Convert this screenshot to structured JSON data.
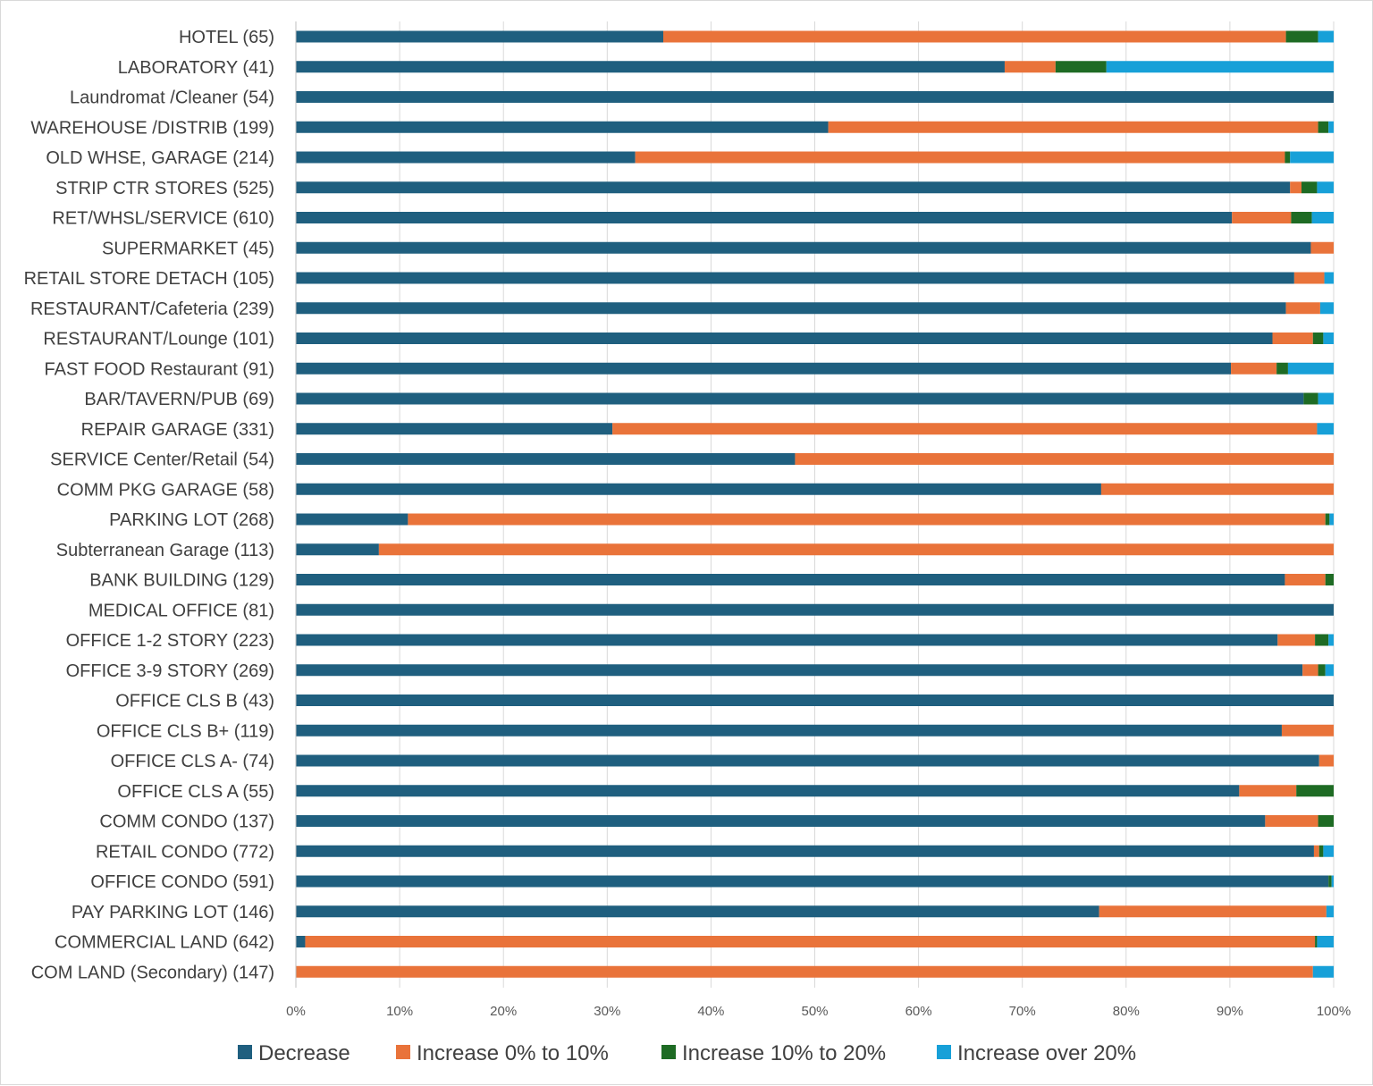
{
  "chart_data": {
    "type": "bar",
    "orientation": "horizontal",
    "stacked": "100%",
    "title": "",
    "xlabel": "",
    "ylabel": "",
    "xlim": [
      0,
      100
    ],
    "x_ticks": [
      "0%",
      "10%",
      "20%",
      "30%",
      "40%",
      "50%",
      "60%",
      "70%",
      "80%",
      "90%",
      "100%"
    ],
    "grid": true,
    "legend_position": "bottom",
    "categories": [
      "HOTEL (65)",
      "LABORATORY (41)",
      "Laundromat /Cleaner (54)",
      "WAREHOUSE /DISTRIB (199)",
      "OLD WHSE, GARAGE (214)",
      "STRIP CTR STORES (525)",
      "RET/WHSL/SERVICE (610)",
      "SUPERMARKET (45)",
      "RETAIL STORE DETACH (105)",
      "RESTAURANT/Cafeteria (239)",
      "RESTAURANT/Lounge (101)",
      "FAST FOOD Restaurant (91)",
      "BAR/TAVERN/PUB (69)",
      "REPAIR GARAGE (331)",
      "SERVICE Center/Retail (54)",
      "COMM PKG GARAGE (58)",
      "PARKING LOT (268)",
      "Subterranean Garage (113)",
      "BANK BUILDING (129)",
      "MEDICAL OFFICE (81)",
      "OFFICE 1-2 STORY (223)",
      "OFFICE 3-9 STORY (269)",
      "OFFICE CLS B (43)",
      "OFFICE CLS B+ (119)",
      "OFFICE CLS A- (74)",
      "OFFICE CLS A (55)",
      "COMM  CONDO (137)",
      "RETAIL CONDO (772)",
      "OFFICE CONDO (591)",
      "PAY PARKING LOT (146)",
      "COMMERCIAL LAND (642)",
      "COM LAND (Secondary) (147)"
    ],
    "series": [
      {
        "name": "Decrease",
        "color": "#1f5f7f",
        "values": [
          35.4,
          68.3,
          100,
          51.3,
          32.7,
          95.8,
          90.2,
          97.8,
          96.2,
          95.4,
          94.1,
          90.1,
          97.1,
          30.5,
          48.1,
          77.6,
          10.8,
          8.0,
          95.3,
          100,
          94.6,
          97.0,
          100,
          95.0,
          98.6,
          90.9,
          93.4,
          98.1,
          99.5,
          77.4,
          0.9,
          0.0
        ]
      },
      {
        "name": "Increase 0% to 10%",
        "color": "#e9733a",
        "values": [
          60.0,
          4.9,
          0,
          47.2,
          62.6,
          1.1,
          5.7,
          2.2,
          2.9,
          3.3,
          3.9,
          4.4,
          0.0,
          67.9,
          51.9,
          22.4,
          88.4,
          92.0,
          3.9,
          0,
          3.6,
          1.5,
          0,
          5.0,
          1.4,
          5.5,
          5.1,
          0.5,
          0.0,
          21.9,
          97.3,
          98.0
        ]
      },
      {
        "name": "Increase 10% to 20%",
        "color": "#1e6b24",
        "values": [
          3.1,
          4.9,
          0,
          1.0,
          0.5,
          1.5,
          2.0,
          0,
          0,
          0,
          1.0,
          1.1,
          1.4,
          0,
          0,
          0,
          0.4,
          0,
          0.8,
          0,
          1.3,
          0.7,
          0,
          0,
          0,
          3.6,
          1.5,
          0.4,
          0.3,
          0,
          0.2,
          0
        ]
      },
      {
        "name": "Increase over 20%",
        "color": "#17a0d8",
        "values": [
          1.5,
          21.9,
          0,
          0.5,
          4.2,
          1.6,
          2.1,
          0,
          0.9,
          1.3,
          1.0,
          4.4,
          1.5,
          1.6,
          0,
          0,
          0.4,
          0,
          0,
          0,
          0.5,
          0.8,
          0,
          0,
          0,
          0,
          0,
          1.0,
          0.2,
          0.7,
          1.6,
          2.0
        ]
      }
    ]
  }
}
